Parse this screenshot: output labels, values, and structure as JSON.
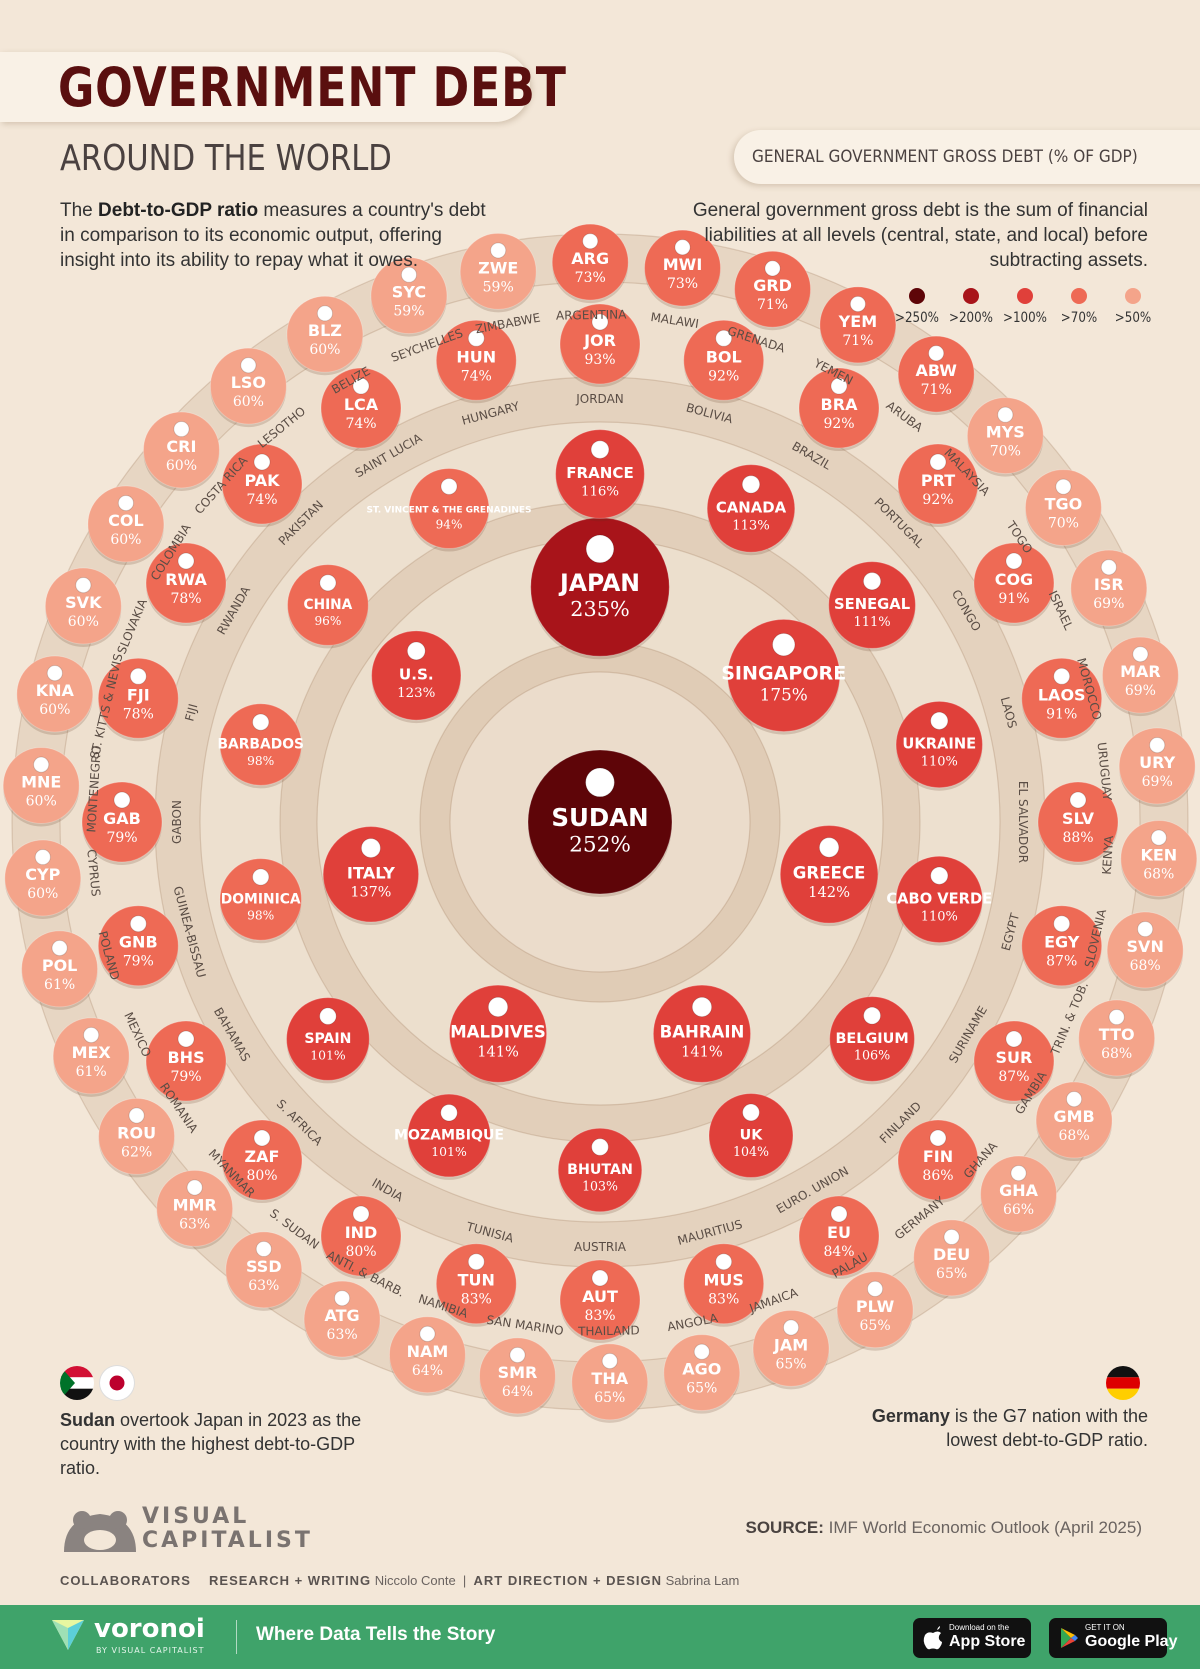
{
  "header": {
    "title": "GOVERNMENT DEBT",
    "subtitle": "AROUND THE WORLD",
    "intro_bold": "Debt-to-GDP ratio",
    "intro_before": "The ",
    "intro_after": " measures a country's debt in comparison to its economic output, offering insight into its ability to repay what it owes.",
    "definition_label": "GENERAL GOVERNMENT GROSS DEBT (% OF GDP)",
    "definition_text": "General government gross debt is the sum of financial liabilities at all levels (central, state, and local) before subtracting assets."
  },
  "legend": [
    {
      "label": ">250%",
      "color": "#5e0508"
    },
    {
      "label": ">200%",
      "color": "#a8141a"
    },
    {
      "label": ">100%",
      "color": "#e0403a"
    },
    {
      "label": ">70%",
      "color": "#ee6a55"
    },
    {
      "label": ">50%",
      "color": "#f4a48a"
    }
  ],
  "chart_data": {
    "type": "bubble-rings",
    "unit": "% of GDP",
    "rings": [
      {
        "ring": 0,
        "countries": [
          {
            "name": "SUDAN",
            "value": 252,
            "flag": "sudan"
          }
        ]
      },
      {
        "ring": 1,
        "countries": [
          {
            "name": "JAPAN",
            "value": 235,
            "flag": "japan"
          },
          {
            "name": "SINGAPORE",
            "value": 175,
            "flag": "singapore"
          },
          {
            "name": "GREECE",
            "value": 142,
            "flag": "greece"
          },
          {
            "name": "BAHRAIN",
            "value": 141,
            "flag": "bahrain"
          },
          {
            "name": "MALDIVES",
            "value": 141,
            "flag": "maldives"
          },
          {
            "name": "ITALY",
            "value": 137,
            "flag": "italy"
          },
          {
            "name": "U.S.",
            "value": 123,
            "flag": "usa"
          }
        ]
      },
      {
        "ring": 2,
        "countries": [
          {
            "name": "FRANCE",
            "value": 116,
            "flag": "france"
          },
          {
            "name": "CANADA",
            "value": 113,
            "flag": "canada"
          },
          {
            "name": "SENEGAL",
            "value": 111,
            "flag": "senegal"
          },
          {
            "name": "UKRAINE",
            "value": 110,
            "flag": "ukraine"
          },
          {
            "name": "CABO VERDE",
            "value": 110,
            "flag": "caboverde"
          },
          {
            "name": "BELGIUM",
            "value": 106,
            "flag": "belgium"
          },
          {
            "name": "UK",
            "value": 104,
            "flag": "uk"
          },
          {
            "name": "BHUTAN",
            "value": 103,
            "flag": "bhutan"
          },
          {
            "name": "MOZAMBIQUE",
            "value": 101,
            "flag": "mozambique"
          },
          {
            "name": "SPAIN",
            "value": 101,
            "flag": "spain"
          },
          {
            "name": "DOMINICA",
            "value": 98,
            "flag": "dominica"
          },
          {
            "name": "BARBADOS",
            "value": 98,
            "flag": "barbados"
          },
          {
            "name": "CHINA",
            "value": 96,
            "flag": "china"
          },
          {
            "name": "ST. VINCENT & THE GRENADINES",
            "value": 94,
            "flag": "stvincent"
          }
        ]
      },
      {
        "ring": 3,
        "countries": [
          {
            "code": "JOR",
            "full": "JORDAN",
            "value": 93
          },
          {
            "code": "BOL",
            "full": "BOLIVIA",
            "value": 92
          },
          {
            "code": "BRA",
            "full": "BRAZIL",
            "value": 92
          },
          {
            "code": "PRT",
            "full": "PORTUGAL",
            "value": 92
          },
          {
            "code": "COG",
            "full": "CONGO",
            "value": 91
          },
          {
            "code": "LAOS",
            "full": "LAOS",
            "value": 91
          },
          {
            "code": "SLV",
            "full": "EL SALVADOR",
            "value": 88
          },
          {
            "code": "EGY",
            "full": "EGYPT",
            "value": 87
          },
          {
            "code": "SUR",
            "full": "SURINAME",
            "value": 87
          },
          {
            "code": "FIN",
            "full": "FINLAND",
            "value": 86
          },
          {
            "code": "EU",
            "full": "EURO. UNION",
            "value": 84
          },
          {
            "code": "MUS",
            "full": "MAURITIUS",
            "value": 83
          },
          {
            "code": "AUT",
            "full": "AUSTRIA",
            "value": 83
          },
          {
            "code": "TUN",
            "full": "TUNISIA",
            "value": 83
          },
          {
            "code": "IND",
            "full": "INDIA",
            "value": 80
          },
          {
            "code": "ZAF",
            "full": "S. AFRICA",
            "value": 80
          },
          {
            "code": "BHS",
            "full": "BAHAMAS",
            "value": 79
          },
          {
            "code": "GNB",
            "full": "GUINEA-BISSAU",
            "value": 79
          },
          {
            "code": "GAB",
            "full": "GABON",
            "value": 79
          },
          {
            "code": "FJI",
            "full": "FIJI",
            "value": 78
          },
          {
            "code": "RWA",
            "full": "RWANDA",
            "value": 78
          },
          {
            "code": "PAK",
            "full": "PAKISTAN",
            "value": 74
          },
          {
            "code": "LCA",
            "full": "SAINT LUCIA",
            "value": 74
          },
          {
            "code": "HUN",
            "full": "HUNGARY",
            "value": 74
          }
        ]
      },
      {
        "ring": 4,
        "countries": [
          {
            "code": "ARG",
            "full": "ARGENTINA",
            "value": 73
          },
          {
            "code": "MWI",
            "full": "MALAWI",
            "value": 73
          },
          {
            "code": "GRD",
            "full": "GRENADA",
            "value": 71
          },
          {
            "code": "YEM",
            "full": "YEMEN",
            "value": 71
          },
          {
            "code": "ABW",
            "full": "ARUBA",
            "value": 71
          },
          {
            "code": "MYS",
            "full": "MALAYSIA",
            "value": 70
          },
          {
            "code": "TGO",
            "full": "TOGO",
            "value": 70
          },
          {
            "code": "ISR",
            "full": "ISRAEL",
            "value": 69
          },
          {
            "code": "MAR",
            "full": "MOROCCO",
            "value": 69
          },
          {
            "code": "URY",
            "full": "URUGUAY",
            "value": 69
          },
          {
            "code": "KEN",
            "full": "KENYA",
            "value": 68
          },
          {
            "code": "SVN",
            "full": "SLOVENIA",
            "value": 68
          },
          {
            "code": "TTO",
            "full": "TRIN. & TOB.",
            "value": 68
          },
          {
            "code": "GMB",
            "full": "GAMBIA",
            "value": 68
          },
          {
            "code": "GHA",
            "full": "GHANA",
            "value": 66
          },
          {
            "code": "DEU",
            "full": "GERMANY",
            "value": 65
          },
          {
            "code": "PLW",
            "full": "PALAU",
            "value": 65
          },
          {
            "code": "JAM",
            "full": "JAMAICA",
            "value": 65
          },
          {
            "code": "AGO",
            "full": "ANGOLA",
            "value": 65
          },
          {
            "code": "THA",
            "full": "THAILAND",
            "value": 65
          },
          {
            "code": "SMR",
            "full": "SAN MARINO",
            "value": 64
          },
          {
            "code": "NAM",
            "full": "NAMIBIA",
            "value": 64
          },
          {
            "code": "ATG",
            "full": "ANTI. & BARB.",
            "value": 63
          },
          {
            "code": "SSD",
            "full": "S. SUDAN",
            "value": 63
          },
          {
            "code": "MMR",
            "full": "MYANMAR",
            "value": 63
          },
          {
            "code": "ROU",
            "full": "ROMANIA",
            "value": 62
          },
          {
            "code": "MEX",
            "full": "MEXICO",
            "value": 61
          },
          {
            "code": "POL",
            "full": "POLAND",
            "value": 61
          },
          {
            "code": "CYP",
            "full": "CYPRUS",
            "value": 60
          },
          {
            "code": "MNE",
            "full": "MONTENEGRO",
            "value": 60
          },
          {
            "code": "KNA",
            "full": "ST. KITTS & NEVIS",
            "value": 60
          },
          {
            "code": "SVK",
            "full": "SLOVAKIA",
            "value": 60
          },
          {
            "code": "COL",
            "full": "COLOMBIA",
            "value": 60
          },
          {
            "code": "CRI",
            "full": "COSTA RICA",
            "value": 60
          },
          {
            "code": "LSO",
            "full": "LESOTHO",
            "value": 60
          },
          {
            "code": "BLZ",
            "full": "BELIZE",
            "value": 60
          },
          {
            "code": "SYC",
            "full": "SEYCHELLES",
            "value": 59
          },
          {
            "code": "ZWE",
            "full": "ZIMBABWE",
            "value": 59
          }
        ]
      }
    ]
  },
  "notes": {
    "left_bold": "Sudan",
    "left_text": " overtook Japan in 2023 as the country with the highest debt-to-GDP ratio.",
    "left_bold2": "Japan",
    "right_bold": "Germany",
    "right_text": " is the G7 nation with the lowest debt-to-GDP ratio."
  },
  "branding": {
    "logo_line1": "VISUAL",
    "logo_line2": "CAPITALIST",
    "source_label": "SOURCE:",
    "source_text": "IMF World Economic Outlook (April 2025)",
    "collab_label": "COLLABORATORS",
    "research_label": "RESEARCH + WRITING",
    "research_name": "Niccolo Conte",
    "art_label": "ART DIRECTION + DESIGN",
    "art_name": "Sabrina Lam",
    "footer_brand": "voronoi",
    "footer_sub": "BY VISUAL CAPITALIST",
    "tagline": "Where Data Tells the Story",
    "appstore_small": "Download on the",
    "appstore_big": "App Store",
    "play_small": "GET IT ON",
    "play_big": "Google Play"
  }
}
